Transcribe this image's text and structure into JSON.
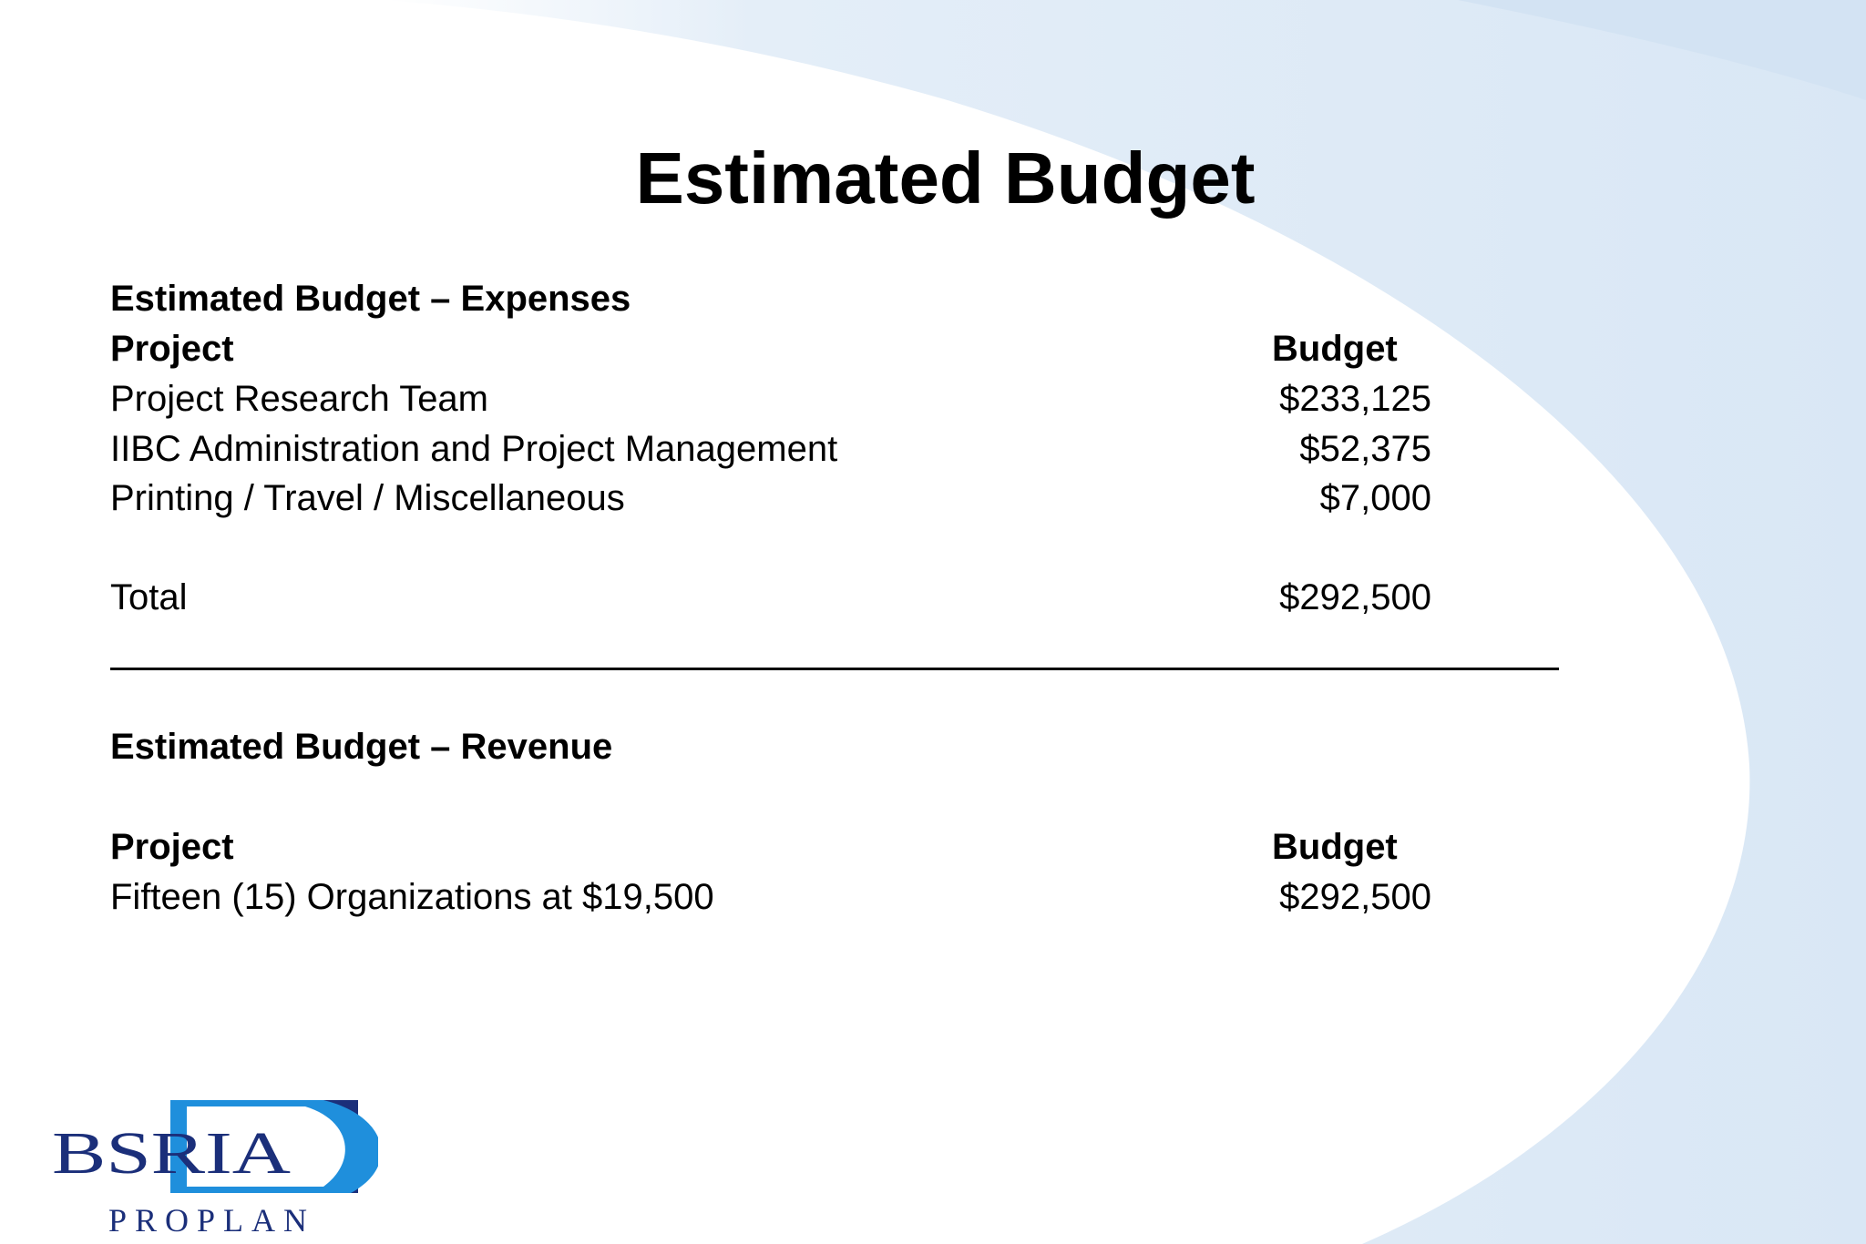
{
  "title": "Estimated Budget",
  "colors": {
    "background_swoosh": "#dde9f6",
    "logo_navy": "#1b2f7a",
    "logo_blue": "#1f8fdc"
  },
  "expenses": {
    "heading": "Estimated Budget – Expenses",
    "col_project": "Project",
    "col_budget": "Budget",
    "rows": [
      {
        "label": "Project Research Team",
        "amount": "$233,125"
      },
      {
        "label": "IIBC Administration and Project Management",
        "amount": "$52,375"
      },
      {
        "label": "Printing / Travel / Miscellaneous",
        "amount": "$7,000"
      }
    ],
    "total_label": "Total",
    "total_amount": "$292,500"
  },
  "revenue": {
    "heading": "Estimated Budget – Revenue",
    "col_project": "Project",
    "col_budget": "Budget",
    "rows": [
      {
        "label": "Fifteen (15) Organizations at $19,500",
        "amount": "$292,500"
      }
    ]
  },
  "logo": {
    "name": "BSRIA",
    "sub": "PROPLAN"
  }
}
